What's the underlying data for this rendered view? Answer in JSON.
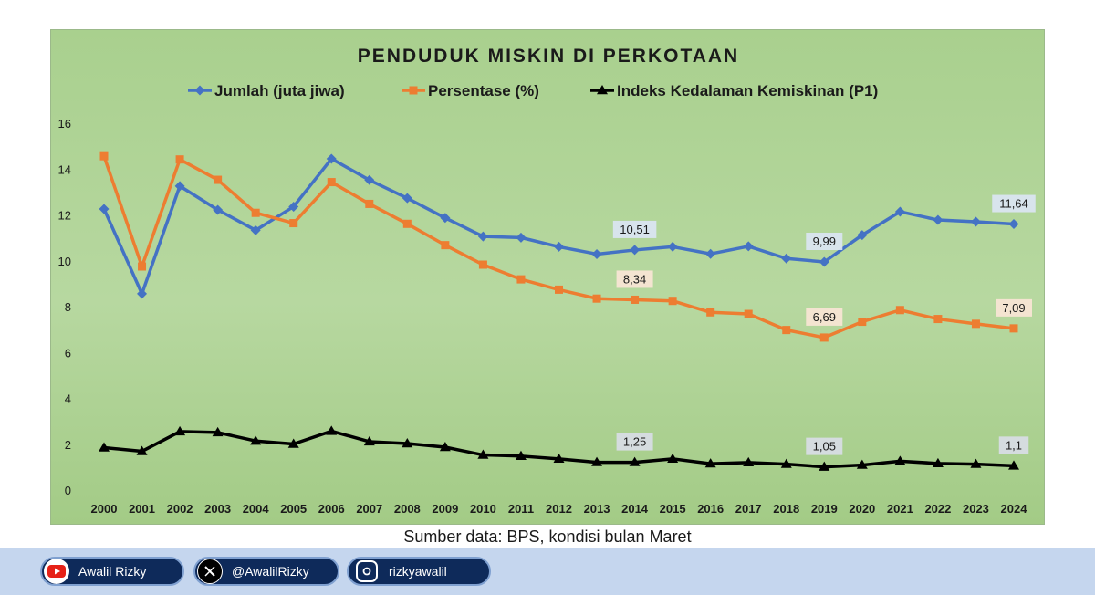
{
  "chart_data": {
    "type": "line",
    "title": "PENDUDUK MISKIN DI PERKOTAAN",
    "x": [
      "2000",
      "2001",
      "2002",
      "2003",
      "2004",
      "2005",
      "2006",
      "2007",
      "2008",
      "2009",
      "2010",
      "2011",
      "2012",
      "2013",
      "2014",
      "2015",
      "2016",
      "2017",
      "2018",
      "2019",
      "2020",
      "2021",
      "2022",
      "2023",
      "2024"
    ],
    "ylim": [
      0,
      16
    ],
    "yticks": [
      0,
      2,
      4,
      6,
      8,
      10,
      12,
      14,
      16
    ],
    "grid": false,
    "legend": "top",
    "series": [
      {
        "name": "Jumlah (juta jiwa)",
        "color": "#4472c4",
        "marker": "diamond",
        "values": [
          12.3,
          8.6,
          13.3,
          12.26,
          11.37,
          12.4,
          14.49,
          13.56,
          12.77,
          11.91,
          11.1,
          11.05,
          10.65,
          10.33,
          10.51,
          10.65,
          10.34,
          10.67,
          10.14,
          9.99,
          11.16,
          12.18,
          11.82,
          11.74,
          11.64
        ],
        "labels": [
          {
            "x": "2014",
            "text": "10,51"
          },
          {
            "x": "2019",
            "text": "9,99"
          },
          {
            "x": "2024",
            "text": "11,64"
          }
        ]
      },
      {
        "name": "Persentase (%)",
        "color": "#ed7d31",
        "marker": "square",
        "values": [
          14.6,
          9.79,
          14.46,
          13.57,
          12.13,
          11.68,
          13.47,
          12.52,
          11.65,
          10.72,
          9.87,
          9.23,
          8.78,
          8.39,
          8.34,
          8.29,
          7.79,
          7.72,
          7.02,
          6.69,
          7.38,
          7.89,
          7.5,
          7.29,
          7.09
        ],
        "labels": [
          {
            "x": "2014",
            "text": "8,34"
          },
          {
            "x": "2019",
            "text": "6,69"
          },
          {
            "x": "2024",
            "text": "7,09"
          }
        ]
      },
      {
        "name": "Indeks Kedalaman Kemiskinan (P1)",
        "color": "#000000",
        "marker": "triangle",
        "values": [
          1.89,
          1.73,
          2.59,
          2.55,
          2.18,
          2.05,
          2.61,
          2.15,
          2.07,
          1.91,
          1.57,
          1.52,
          1.4,
          1.25,
          1.25,
          1.4,
          1.19,
          1.24,
          1.17,
          1.05,
          1.13,
          1.3,
          1.2,
          1.17,
          1.1
        ],
        "labels": [
          {
            "x": "2014",
            "text": "1,25"
          },
          {
            "x": "2019",
            "text": "1,05"
          },
          {
            "x": "2024",
            "text": "1,1"
          }
        ]
      }
    ]
  },
  "source_note": "Sumber data: BPS, kondisi bulan Maret",
  "social": {
    "youtube": "Awalil Rizky",
    "x": "@AwalilRizky",
    "instagram": "rizkyawalil"
  }
}
